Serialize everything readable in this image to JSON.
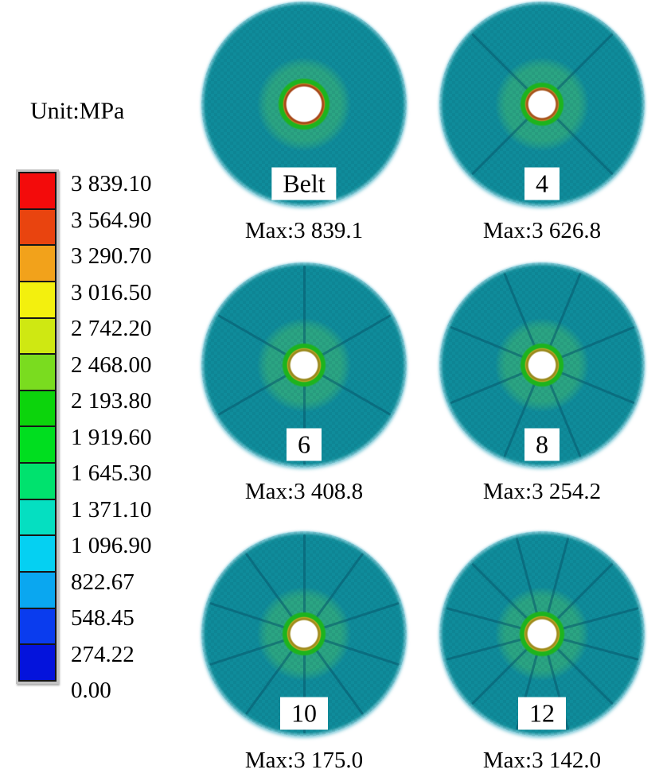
{
  "legend": {
    "title": "Unit:MPa",
    "values": [
      "3 839.10",
      "3 564.90",
      "3 290.70",
      "3 016.50",
      "2 742.20",
      "2 468.00",
      "2 193.80",
      "1 919.60",
      "1 645.30",
      "1 371.10",
      "1 096.90",
      "822.67",
      "548.45",
      "274.22",
      "0.00"
    ],
    "colors": [
      "#f30b0b",
      "#e9440f",
      "#f2a21b",
      "#f3f00e",
      "#cfe812",
      "#7adc1f",
      "#0cd40c",
      "#00de1f",
      "#00e26e",
      "#05dfc1",
      "#05d0f2",
      "#0aa7f0",
      "#0a3cee",
      "#0413dc"
    ]
  },
  "colors": {
    "disk_body": "#0f8c9b",
    "disk_mid_zone": "#2ba583",
    "hub_green_ring": "#1db41d",
    "hole_fill": "#ffffff",
    "spoke_line": "#07586c"
  },
  "disks": [
    {
      "id": "belt",
      "label": "Belt",
      "caption": "Max:3 839.1",
      "spokes": 0,
      "hole_r": 22,
      "hub_ring": {
        "inner": "#a8481a",
        "outer": "#c47a1e"
      }
    },
    {
      "id": "4",
      "label": "4",
      "caption": "Max:3 626.8",
      "spokes": 4,
      "hole_r": 17,
      "hub_ring": {
        "inner": "#a8561e",
        "outer": "#c08226"
      }
    },
    {
      "id": "6",
      "label": "6",
      "caption": "Max:3 408.8",
      "spokes": 6,
      "hole_r": 17,
      "hub_ring": {
        "inner": "#9a8a1e",
        "outer": "#bfa524"
      }
    },
    {
      "id": "8",
      "label": "8",
      "caption": "Max:3 254.2",
      "spokes": 8,
      "hole_r": 17,
      "hub_ring": {
        "inner": "#9a8a1e",
        "outer": "#bfa524"
      }
    },
    {
      "id": "10",
      "label": "10",
      "caption": "Max:3 175.0",
      "spokes": 10,
      "hole_r": 17,
      "hub_ring": {
        "inner": "#a08c1e",
        "outer": "#c2a822"
      }
    },
    {
      "id": "12",
      "label": "12",
      "caption": "Max:3 142.0",
      "spokes": 12,
      "hole_r": 18,
      "hub_ring": {
        "inner": "#a08c1e",
        "outer": "#c2a822"
      }
    }
  ]
}
